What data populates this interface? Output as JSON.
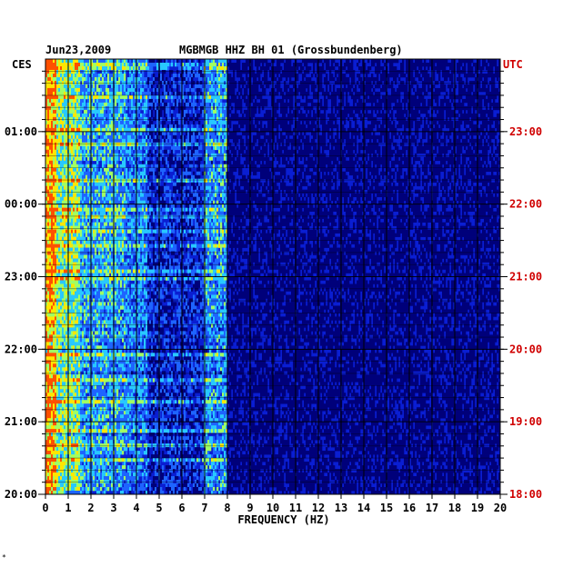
{
  "chart_data": {
    "type": "heatmap",
    "date": "Jun23,2009",
    "station_label": "MGBMGB HHZ BH 01 (Grossbundenberg)",
    "left_timezone": "CES",
    "right_timezone": "UTC",
    "xlabel": "FREQUENCY (HZ)",
    "xlim": [
      0,
      20
    ],
    "x_ticks": [
      "0",
      "1",
      "2",
      "3",
      "4",
      "5",
      "6",
      "7",
      "8",
      "9",
      "10",
      "11",
      "12",
      "13",
      "14",
      "15",
      "16",
      "17",
      "18",
      "19",
      "20"
    ],
    "left_time_ticks": [
      {
        "label": "01:00",
        "hours_before_end": 1
      },
      {
        "label": "00:00",
        "hours_before_end": 2
      },
      {
        "label": "23:00",
        "hours_before_end": 3
      },
      {
        "label": "22:00",
        "hours_before_end": 4
      },
      {
        "label": "21:00",
        "hours_before_end": 5
      },
      {
        "label": "20:00",
        "hours_before_end": 6
      }
    ],
    "right_time_ticks": [
      {
        "label": "23:00",
        "hours_before_end": 1
      },
      {
        "label": "22:00",
        "hours_before_end": 2
      },
      {
        "label": "21:00",
        "hours_before_end": 3
      },
      {
        "label": "20:00",
        "hours_before_end": 4
      },
      {
        "label": "19:00",
        "hours_before_end": 5
      },
      {
        "label": "18:00",
        "hours_before_end": 6
      }
    ],
    "time_span_hours": 6,
    "grid": true,
    "colormap": [
      "#00007a",
      "#0a1ed2",
      "#1e64ff",
      "#28c8ff",
      "#a0ff64",
      "#ffe600",
      "#ff5000"
    ],
    "band_intensity": [
      {
        "f_from": 0,
        "f_to": 0.5,
        "level": 0.85
      },
      {
        "f_from": 0.5,
        "f_to": 1.5,
        "level": 0.62
      },
      {
        "f_from": 1.5,
        "f_to": 3.5,
        "level": 0.45
      },
      {
        "f_from": 3.5,
        "f_to": 4.5,
        "level": 0.38
      },
      {
        "f_from": 4.5,
        "f_to": 7,
        "level": 0.22
      },
      {
        "f_from": 7,
        "f_to": 8,
        "level": 0.42
      },
      {
        "f_from": 8,
        "f_to": 20,
        "level": 0.1
      }
    ]
  },
  "footer_mark": "*"
}
